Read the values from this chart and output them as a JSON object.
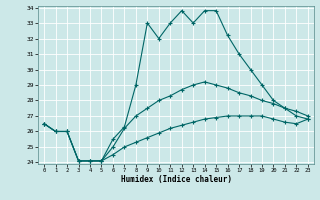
{
  "xlabel": "Humidex (Indice chaleur)",
  "bg_color": "#cce8e8",
  "grid_color": "#b0d8d8",
  "line_color": "#006666",
  "x_hours": [
    0,
    1,
    2,
    3,
    4,
    5,
    6,
    7,
    8,
    9,
    10,
    11,
    12,
    13,
    14,
    15,
    16,
    17,
    18,
    19,
    20,
    21,
    22,
    23
  ],
  "series1": [
    26.5,
    26.0,
    26.0,
    24.1,
    24.1,
    24.1,
    25.5,
    26.3,
    29.0,
    33.0,
    32.0,
    33.0,
    33.8,
    33.0,
    33.8,
    33.8,
    32.2,
    31.0,
    30.0,
    29.0,
    28.0,
    27.5,
    27.0,
    26.8
  ],
  "series2": [
    26.5,
    26.0,
    26.0,
    24.1,
    24.1,
    24.1,
    25.0,
    26.2,
    27.0,
    27.5,
    28.0,
    28.3,
    28.7,
    29.0,
    29.2,
    29.0,
    28.8,
    28.5,
    28.3,
    28.0,
    27.8,
    27.5,
    27.3,
    27.0
  ],
  "series3": [
    26.5,
    26.0,
    26.0,
    24.1,
    24.1,
    24.1,
    24.5,
    25.0,
    25.3,
    25.6,
    25.9,
    26.2,
    26.4,
    26.6,
    26.8,
    26.9,
    27.0,
    27.0,
    27.0,
    27.0,
    26.8,
    26.6,
    26.5,
    26.8
  ],
  "ylim": [
    24,
    34
  ],
  "xlim": [
    -0.5,
    23.5
  ],
  "yticks": [
    24,
    25,
    26,
    27,
    28,
    29,
    30,
    31,
    32,
    33,
    34
  ],
  "xticks": [
    0,
    1,
    2,
    3,
    4,
    5,
    6,
    7,
    8,
    9,
    10,
    11,
    12,
    13,
    14,
    15,
    16,
    17,
    18,
    19,
    20,
    21,
    22,
    23
  ],
  "xtick_labels": [
    "0",
    "1",
    "2",
    "3",
    "4",
    "5",
    "6",
    "7",
    "8",
    "9",
    "10",
    "11",
    "12",
    "13",
    "14",
    "15",
    "16",
    "17",
    "18",
    "19",
    "20",
    "21",
    "22",
    "23"
  ]
}
